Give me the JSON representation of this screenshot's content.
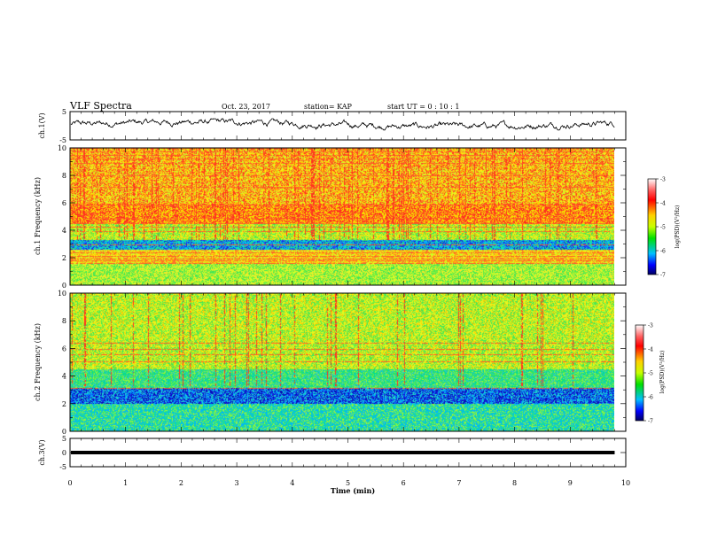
{
  "header": {
    "title": "VLF Spectra",
    "date": "Oct. 23, 2017",
    "station": "station= KAP",
    "start": "start UT =  0 : 10 : 1"
  },
  "chart_data": [
    {
      "type": "line",
      "name": "ch1-voltage",
      "ylabel": "ch.1(V)",
      "xlim": [
        0,
        10
      ],
      "ylim": [
        -5,
        5
      ],
      "yticks": [
        "5",
        "-5"
      ],
      "trace_range": [
        -1.5,
        2.5
      ],
      "x_end": 9.8
    },
    {
      "type": "heatmap",
      "name": "ch1-spectrogram",
      "ylabel": "ch.1 Frequency (kHz)",
      "xlim": [
        0,
        10
      ],
      "ylim": [
        0,
        10
      ],
      "yticks": [
        "0",
        "2",
        "4",
        "6",
        "8",
        "10"
      ],
      "colorbar": {
        "label": "log(PSD)(V²/Hz)",
        "range": [
          -7,
          -3
        ],
        "ticks": [
          "-3",
          "-4",
          "-5",
          "-6",
          "-7"
        ]
      },
      "bands": [
        {
          "from": 10.0,
          "to": 6.0,
          "level": "yellow-red"
        },
        {
          "from": 6.0,
          "to": 4.5,
          "level": "red"
        },
        {
          "from": 4.5,
          "to": 3.3,
          "level": "yellow-green"
        },
        {
          "from": 3.3,
          "to": 2.6,
          "level": "blue-green"
        },
        {
          "from": 2.6,
          "to": 1.6,
          "level": "yellow"
        },
        {
          "from": 1.6,
          "to": 0.0,
          "level": "green-yellow"
        }
      ]
    },
    {
      "type": "heatmap",
      "name": "ch2-spectrogram",
      "ylabel": "ch.2 Frequency (kHz)",
      "xlim": [
        0,
        10
      ],
      "ylim": [
        0,
        10
      ],
      "yticks": [
        "0",
        "2",
        "4",
        "6",
        "8",
        "10"
      ],
      "colorbar": {
        "label": "log(PSD)(V²/Hz)",
        "range": [
          -7,
          -3
        ],
        "ticks": [
          "-3",
          "-4",
          "-5",
          "-6",
          "-7"
        ]
      },
      "bands": [
        {
          "from": 10.0,
          "to": 4.5,
          "level": "yellow-green"
        },
        {
          "from": 4.5,
          "to": 3.2,
          "level": "green"
        },
        {
          "from": 3.2,
          "to": 2.0,
          "level": "blue"
        },
        {
          "from": 2.0,
          "to": 0.0,
          "level": "cyan-green"
        }
      ]
    },
    {
      "type": "line",
      "name": "ch3-voltage",
      "ylabel": "ch.3(V)",
      "xlabel": "Time (min)",
      "xlim": [
        0,
        10
      ],
      "ylim": [
        -5,
        5
      ],
      "yticks": [
        "5",
        "0",
        "-5"
      ],
      "xticks": [
        "0",
        "1",
        "2",
        "3",
        "4",
        "5",
        "6",
        "7",
        "8",
        "9",
        "10"
      ],
      "level": 0,
      "x_end": 9.8
    }
  ],
  "colors": {
    "trace": "#000000",
    "axis": "#000000"
  }
}
